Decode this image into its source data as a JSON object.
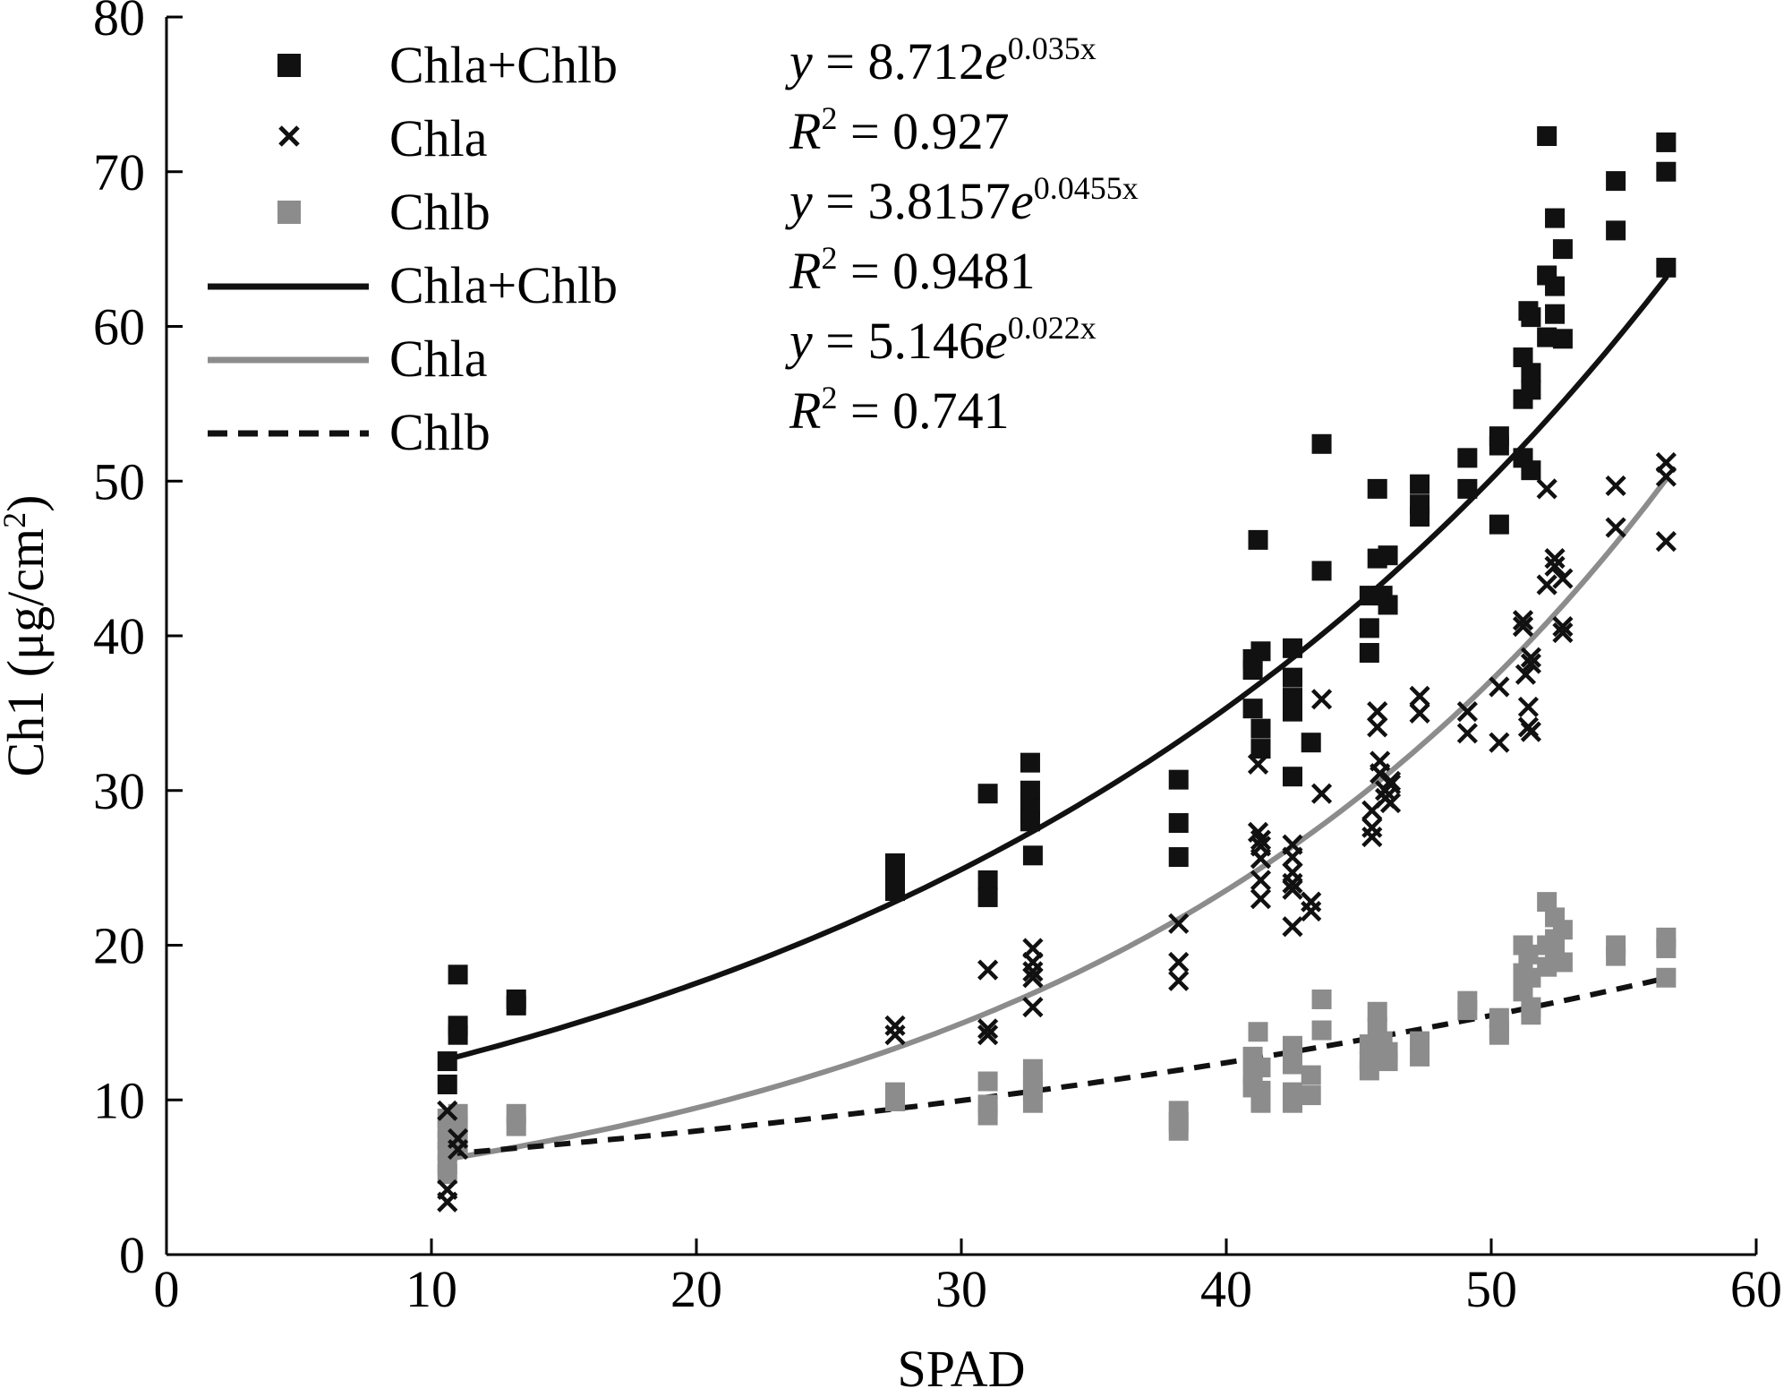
{
  "chart_data": {
    "type": "scatter",
    "xlabel": "SPAD",
    "ylabel_main": "Ch1 (μg/cm",
    "ylabel_sup": "2",
    "ylabel_close": ")",
    "xlim": [
      0,
      60
    ],
    "ylim": [
      0,
      80
    ],
    "xticks": [
      "0",
      "10",
      "20",
      "30",
      "40",
      "50",
      "60"
    ],
    "yticks": [
      "0",
      "10",
      "20",
      "30",
      "40",
      "50",
      "60",
      "70",
      "80"
    ],
    "grid": false,
    "legend_position": "top-left",
    "colors": {
      "chla_chlb": "#111111",
      "chla": "#111111",
      "chlb": "#8c8c8c",
      "chla_fit": "#8c8c8c"
    },
    "legend": [
      {
        "label": "Chla+Chlb",
        "kind": "square",
        "color": "#111111"
      },
      {
        "label": "Chla",
        "kind": "x",
        "color": "#111111"
      },
      {
        "label": "Chlb",
        "kind": "square",
        "color": "#8c8c8c"
      },
      {
        "label": "Chla+Chlb",
        "kind": "solid-line",
        "color": "#111111"
      },
      {
        "label": "Chla",
        "kind": "solid-line",
        "color": "#8c8c8c"
      },
      {
        "label": "Chlb",
        "kind": "dashed-line",
        "color": "#111111"
      }
    ],
    "equations": [
      {
        "y": "y",
        "rhs": " = 8.712",
        "base": "e",
        "exp": "0.035x"
      },
      {
        "r": "R",
        "sup": "2",
        "rhs": " = 0.927"
      },
      {
        "y": "y",
        "rhs": " = 3.8157",
        "base": "e",
        "exp": "0.0455x"
      },
      {
        "r": "R",
        "sup": "2",
        "rhs": " = 0.9481"
      },
      {
        "y": "y",
        "rhs": " = 5.146",
        "base": "e",
        "exp": "0.022x"
      },
      {
        "r": "R",
        "sup": "2",
        "rhs": " = 0.741"
      }
    ],
    "fits": [
      {
        "name": "Chla+Chlb",
        "a": 8.712,
        "b": 0.035,
        "x_range": [
          10.6,
          56.6
        ],
        "style": "solid",
        "color": "#111111"
      },
      {
        "name": "Chla",
        "a": 3.8157,
        "b": 0.0455,
        "x_range": [
          10.6,
          56.6
        ],
        "style": "solid",
        "color": "#8c8c8c"
      },
      {
        "name": "Chlb",
        "a": 5.146,
        "b": 0.022,
        "x_range": [
          10.6,
          56.6
        ],
        "style": "dashed",
        "color": "#111111"
      }
    ],
    "series": [
      {
        "name": "Chla+Chlb",
        "marker": "square",
        "color": "#111111",
        "points": [
          [
            10.6,
            12.5
          ],
          [
            10.6,
            11.0
          ],
          [
            11.0,
            18.1
          ],
          [
            11.0,
            14.8
          ],
          [
            11.0,
            14.2
          ],
          [
            13.2,
            16.5
          ],
          [
            13.2,
            16.1
          ],
          [
            27.5,
            25.3
          ],
          [
            27.5,
            24.5
          ],
          [
            27.5,
            23.5
          ],
          [
            31.0,
            29.8
          ],
          [
            31.0,
            24.2
          ],
          [
            31.0,
            23.1
          ],
          [
            32.6,
            31.8
          ],
          [
            32.6,
            30.0
          ],
          [
            32.6,
            28.8
          ],
          [
            32.6,
            28.0
          ],
          [
            32.7,
            25.8
          ],
          [
            38.2,
            30.7
          ],
          [
            38.2,
            27.9
          ],
          [
            38.2,
            25.7
          ],
          [
            41.0,
            38.5
          ],
          [
            41.0,
            37.8
          ],
          [
            41.0,
            35.3
          ],
          [
            41.2,
            46.2
          ],
          [
            41.3,
            39.0
          ],
          [
            41.3,
            34.0
          ],
          [
            41.3,
            32.7
          ],
          [
            42.5,
            39.2
          ],
          [
            42.5,
            37.3
          ],
          [
            42.5,
            36.0
          ],
          [
            42.5,
            35.1
          ],
          [
            42.5,
            30.9
          ],
          [
            43.2,
            33.1
          ],
          [
            43.6,
            52.4
          ],
          [
            43.6,
            44.2
          ],
          [
            45.4,
            42.6
          ],
          [
            45.4,
            40.5
          ],
          [
            45.4,
            38.9
          ],
          [
            45.7,
            49.5
          ],
          [
            45.7,
            45.0
          ],
          [
            45.9,
            42.6
          ],
          [
            46.1,
            42.0
          ],
          [
            46.1,
            45.2
          ],
          [
            47.3,
            49.8
          ],
          [
            47.3,
            48.5
          ],
          [
            47.3,
            47.7
          ],
          [
            49.1,
            51.5
          ],
          [
            49.1,
            49.5
          ],
          [
            50.3,
            52.9
          ],
          [
            50.3,
            52.3
          ],
          [
            50.3,
            47.2
          ],
          [
            51.2,
            58.0
          ],
          [
            51.2,
            55.3
          ],
          [
            51.2,
            51.5
          ],
          [
            51.4,
            61.0
          ],
          [
            51.5,
            60.6
          ],
          [
            51.5,
            57.0
          ],
          [
            51.5,
            55.9
          ],
          [
            51.5,
            50.7
          ],
          [
            52.1,
            72.3
          ],
          [
            52.1,
            63.3
          ],
          [
            52.1,
            59.3
          ],
          [
            52.4,
            67.0
          ],
          [
            52.4,
            62.6
          ],
          [
            52.4,
            60.8
          ],
          [
            52.7,
            65.0
          ],
          [
            52.7,
            59.2
          ],
          [
            54.7,
            69.4
          ],
          [
            54.7,
            66.2
          ],
          [
            56.6,
            71.9
          ],
          [
            56.6,
            70.0
          ],
          [
            56.6,
            63.8
          ]
        ]
      },
      {
        "name": "Chla",
        "marker": "x",
        "color": "#111111",
        "points": [
          [
            10.6,
            9.3
          ],
          [
            10.6,
            4.2
          ],
          [
            10.6,
            3.4
          ],
          [
            11.0,
            7.5
          ],
          [
            11.0,
            6.8
          ],
          [
            27.5,
            14.8
          ],
          [
            27.5,
            14.2
          ],
          [
            31.0,
            18.4
          ],
          [
            31.0,
            14.6
          ],
          [
            31.0,
            14.2
          ],
          [
            32.7,
            19.8
          ],
          [
            32.7,
            18.9
          ],
          [
            32.7,
            18.3
          ],
          [
            32.7,
            17.9
          ],
          [
            32.7,
            16.0
          ],
          [
            38.2,
            21.4
          ],
          [
            38.2,
            18.9
          ],
          [
            38.2,
            17.7
          ],
          [
            41.2,
            31.7
          ],
          [
            41.2,
            27.3
          ],
          [
            41.3,
            26.8
          ],
          [
            41.3,
            26.4
          ],
          [
            41.3,
            25.6
          ],
          [
            41.3,
            24.2
          ],
          [
            41.3,
            23.0
          ],
          [
            42.5,
            26.5
          ],
          [
            42.5,
            25.7
          ],
          [
            42.5,
            24.7
          ],
          [
            42.5,
            24.0
          ],
          [
            42.5,
            23.6
          ],
          [
            42.5,
            21.2
          ],
          [
            43.2,
            22.8
          ],
          [
            43.2,
            22.2
          ],
          [
            43.6,
            35.9
          ],
          [
            43.6,
            29.8
          ],
          [
            45.5,
            28.7
          ],
          [
            45.5,
            27.6
          ],
          [
            45.5,
            27.0
          ],
          [
            45.7,
            35.1
          ],
          [
            45.7,
            34.1
          ],
          [
            45.8,
            31.9
          ],
          [
            45.8,
            31.1
          ],
          [
            46.0,
            30.0
          ],
          [
            46.0,
            29.5
          ],
          [
            46.2,
            30.4
          ],
          [
            46.2,
            29.2
          ],
          [
            46.2,
            30.6
          ],
          [
            47.3,
            36.1
          ],
          [
            47.3,
            35.0
          ],
          [
            49.1,
            35.1
          ],
          [
            49.1,
            33.7
          ],
          [
            50.3,
            36.7
          ],
          [
            50.3,
            33.1
          ],
          [
            51.2,
            41.0
          ],
          [
            51.2,
            40.6
          ],
          [
            51.3,
            37.5
          ],
          [
            51.4,
            35.4
          ],
          [
            51.4,
            34.1
          ],
          [
            51.5,
            38.6
          ],
          [
            51.5,
            38.2
          ],
          [
            51.5,
            33.8
          ],
          [
            52.1,
            49.5
          ],
          [
            52.1,
            43.3
          ],
          [
            52.4,
            45.0
          ],
          [
            52.4,
            44.5
          ],
          [
            52.7,
            43.7
          ],
          [
            52.7,
            40.6
          ],
          [
            52.7,
            40.2
          ],
          [
            54.7,
            49.7
          ],
          [
            54.7,
            47.0
          ],
          [
            56.6,
            51.2
          ],
          [
            56.6,
            50.3
          ],
          [
            56.6,
            46.1
          ]
        ]
      },
      {
        "name": "Chlb",
        "marker": "square",
        "color": "#8c8c8c",
        "points": [
          [
            10.6,
            8.8
          ],
          [
            10.6,
            8.1
          ],
          [
            10.6,
            7.4
          ],
          [
            10.6,
            6.7
          ],
          [
            10.6,
            5.8
          ],
          [
            10.6,
            5.2
          ],
          [
            11.0,
            9.1
          ],
          [
            11.0,
            8.4
          ],
          [
            11.0,
            7.2
          ],
          [
            13.2,
            9.1
          ],
          [
            13.2,
            8.3
          ],
          [
            27.5,
            10.5
          ],
          [
            27.5,
            9.9
          ],
          [
            31.0,
            11.2
          ],
          [
            31.0,
            9.7
          ],
          [
            31.0,
            9.0
          ],
          [
            32.7,
            12.0
          ],
          [
            32.7,
            11.3
          ],
          [
            32.7,
            10.6
          ],
          [
            32.7,
            9.8
          ],
          [
            38.2,
            9.3
          ],
          [
            38.2,
            8.6
          ],
          [
            38.2,
            8.0
          ],
          [
            41.0,
            12.8
          ],
          [
            41.0,
            11.6
          ],
          [
            41.0,
            10.8
          ],
          [
            41.2,
            14.4
          ],
          [
            41.3,
            12.1
          ],
          [
            41.3,
            10.6
          ],
          [
            41.3,
            9.8
          ],
          [
            42.5,
            13.5
          ],
          [
            42.5,
            12.3
          ],
          [
            42.5,
            10.5
          ],
          [
            42.5,
            9.8
          ],
          [
            43.2,
            11.6
          ],
          [
            43.2,
            10.3
          ],
          [
            43.6,
            16.5
          ],
          [
            43.6,
            14.5
          ],
          [
            45.4,
            13.6
          ],
          [
            45.4,
            12.5
          ],
          [
            45.4,
            11.9
          ],
          [
            45.7,
            15.7
          ],
          [
            45.7,
            14.7
          ],
          [
            45.9,
            13.8
          ],
          [
            46.1,
            13.1
          ],
          [
            46.1,
            12.5
          ],
          [
            47.3,
            13.8
          ],
          [
            47.3,
            12.8
          ],
          [
            49.1,
            16.4
          ],
          [
            49.1,
            15.8
          ],
          [
            50.3,
            15.3
          ],
          [
            50.3,
            14.5
          ],
          [
            50.3,
            14.2
          ],
          [
            51.2,
            20.0
          ],
          [
            51.2,
            18.2
          ],
          [
            51.2,
            17.0
          ],
          [
            51.4,
            19.4
          ],
          [
            51.5,
            17.9
          ],
          [
            51.5,
            16.0
          ],
          [
            51.5,
            15.5
          ],
          [
            52.1,
            22.8
          ],
          [
            52.1,
            20.0
          ],
          [
            52.1,
            18.6
          ],
          [
            52.4,
            21.8
          ],
          [
            52.4,
            20.4
          ],
          [
            52.4,
            19.2
          ],
          [
            52.7,
            21.0
          ],
          [
            52.7,
            18.9
          ],
          [
            54.7,
            20.0
          ],
          [
            54.7,
            19.3
          ],
          [
            56.6,
            20.5
          ],
          [
            56.6,
            19.8
          ],
          [
            56.6,
            17.9
          ]
        ]
      }
    ]
  }
}
